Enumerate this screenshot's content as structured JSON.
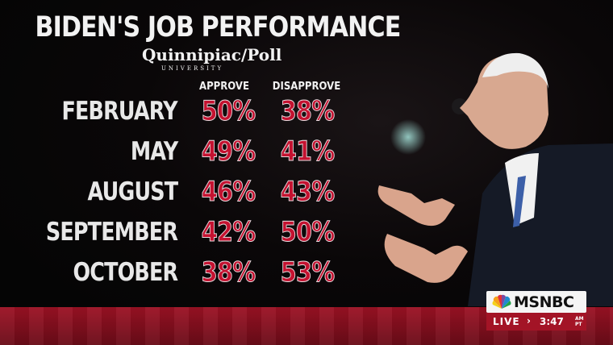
{
  "title": "BIDEN'S JOB PERFORMANCE",
  "logo": {
    "name": "Quinnipiac/Poll",
    "sub": "UNIVERSITY"
  },
  "chart_data": {
    "type": "table",
    "title": "BIDEN'S JOB PERFORMANCE",
    "columns": [
      "APPROVE",
      "DISAPPROVE"
    ],
    "rows": [
      {
        "label": "FEBRUARY",
        "approve": "50%",
        "disapprove": "38%"
      },
      {
        "label": "MAY",
        "approve": "49%",
        "disapprove": "41%"
      },
      {
        "label": "AUGUST",
        "approve": "46%",
        "disapprove": "43%"
      },
      {
        "label": "SEPTEMBER",
        "approve": "42%",
        "disapprove": "50%"
      },
      {
        "label": "OCTOBER",
        "approve": "38%",
        "disapprove": "53%"
      }
    ]
  },
  "network": {
    "name": "MSNBC",
    "live": "LIVE",
    "time": "3:47",
    "am": "AM",
    "pt": "PT"
  },
  "colors": {
    "value": "#c41230",
    "stripe": "#9c1224",
    "text": "#f2f2f2"
  }
}
